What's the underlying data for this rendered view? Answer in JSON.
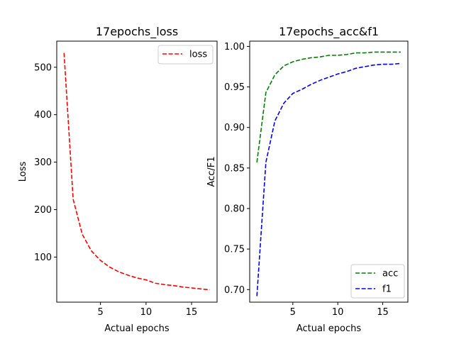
{
  "chart_data": [
    {
      "type": "line",
      "title": "17epochs_loss",
      "xlabel": "Actual epochs",
      "ylabel": "Loss",
      "xlim": [
        0.2,
        17.8
      ],
      "ylim": [
        5,
        555
      ],
      "xticks": [
        5,
        10,
        15
      ],
      "yticks": [
        100,
        200,
        300,
        400,
        500
      ],
      "grid": false,
      "legend_position": "top-right",
      "x": [
        1,
        2,
        3,
        4,
        5,
        6,
        7,
        8,
        9,
        10,
        11,
        12,
        13,
        14,
        15,
        16,
        17
      ],
      "series": [
        {
          "name": "loss",
          "color": "#ff0000",
          "style": "dashed",
          "values": [
            530,
            222,
            148,
            113,
            93,
            79,
            69,
            62,
            56,
            52,
            45,
            42,
            40,
            37,
            35,
            33,
            31
          ]
        }
      ]
    },
    {
      "type": "line",
      "title": "17epochs_acc&f1",
      "xlabel": "Actual epochs",
      "ylabel": "Acc/F1",
      "xlim": [
        0.2,
        17.8
      ],
      "ylim": [
        0.6845,
        1.0065
      ],
      "xticks": [
        5,
        10,
        15
      ],
      "yticks": [
        "0.70",
        "0.75",
        "0.80",
        "0.85",
        "0.90",
        "0.95",
        "1.00"
      ],
      "grid": false,
      "legend_position": "bottom-right",
      "x": [
        1,
        2,
        3,
        4,
        5,
        6,
        7,
        8,
        9,
        10,
        11,
        12,
        13,
        14,
        15,
        16,
        17
      ],
      "series": [
        {
          "name": "acc",
          "color": "#008000",
          "style": "dashed",
          "values": [
            0.857,
            0.943,
            0.965,
            0.976,
            0.981,
            0.984,
            0.986,
            0.987,
            0.989,
            0.989,
            0.99,
            0.992,
            0.992,
            0.993,
            0.993,
            0.993,
            0.993
          ]
        },
        {
          "name": "f1",
          "color": "#0000ff",
          "style": "dashed",
          "values": [
            0.692,
            0.857,
            0.908,
            0.93,
            0.942,
            0.947,
            0.953,
            0.958,
            0.962,
            0.966,
            0.969,
            0.973,
            0.975,
            0.977,
            0.978,
            0.978,
            0.979
          ]
        }
      ]
    }
  ]
}
